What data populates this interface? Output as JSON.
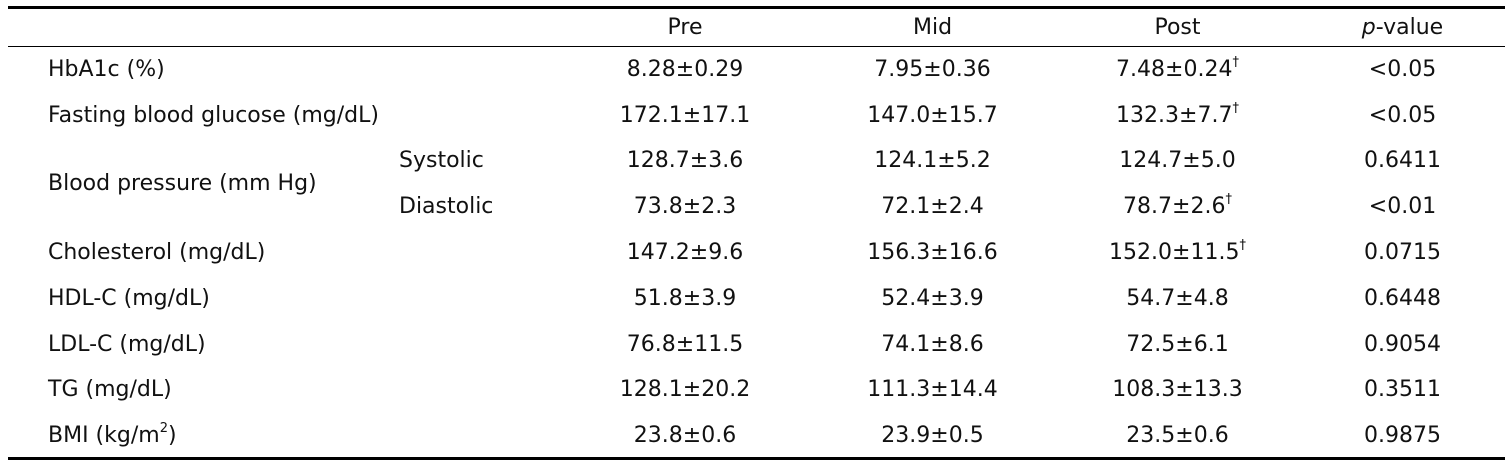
{
  "table": {
    "columns": [
      {
        "text": "Pre"
      },
      {
        "text": "Mid"
      },
      {
        "text": "Post"
      },
      {
        "italic": "p",
        "text": "-value"
      }
    ],
    "rows": [
      {
        "label": "HbA1c (%)",
        "cells": [
          {
            "text": "8.28±0.29"
          },
          {
            "text": "7.95±0.36"
          },
          {
            "text": "7.48±0.24",
            "sup": "†"
          },
          {
            "text": "<0.05"
          }
        ]
      },
      {
        "label": "Fasting blood glucose (mg/dL)",
        "cells": [
          {
            "text": "172.1±17.1"
          },
          {
            "text": "147.0±15.7"
          },
          {
            "text": "132.3±7.7",
            "sup": "†"
          },
          {
            "text": "<0.05"
          }
        ]
      },
      {
        "label": "Blood pressure (mm Hg)",
        "subrows": [
          {
            "sublabel": "Systolic",
            "cells": [
              {
                "text": "128.7±3.6"
              },
              {
                "text": "124.1±5.2"
              },
              {
                "text": "124.7±5.0"
              },
              {
                "text": "0.6411"
              }
            ]
          },
          {
            "sublabel": "Diastolic",
            "cells": [
              {
                "text": "73.8±2.3"
              },
              {
                "text": "72.1±2.4"
              },
              {
                "text": "78.7±2.6",
                "sup": "†"
              },
              {
                "text": "<0.01"
              }
            ]
          }
        ]
      },
      {
        "label": "Cholesterol (mg/dL)",
        "cells": [
          {
            "text": "147.2±9.6"
          },
          {
            "text": "156.3±16.6"
          },
          {
            "text": "152.0±11.5",
            "sup": "†"
          },
          {
            "text": "0.0715"
          }
        ]
      },
      {
        "label": "HDL-C (mg/dL)",
        "cells": [
          {
            "text": "51.8±3.9"
          },
          {
            "text": "52.4±3.9"
          },
          {
            "text": "54.7±4.8"
          },
          {
            "text": "0.6448"
          }
        ]
      },
      {
        "label": "LDL-C (mg/dL)",
        "cells": [
          {
            "text": "76.8±11.5"
          },
          {
            "text": "74.1±8.6"
          },
          {
            "text": "72.5±6.1"
          },
          {
            "text": "0.9054"
          }
        ]
      },
      {
        "label": "TG (mg/dL)",
        "cells": [
          {
            "text": "128.1±20.2"
          },
          {
            "text": "111.3±14.4"
          },
          {
            "text": "108.3±13.3"
          },
          {
            "text": "0.3511"
          }
        ]
      },
      {
        "label": "BMI (kg/m",
        "label_sup": "2",
        "label_end": ")",
        "cells": [
          {
            "text": "23.8±0.6"
          },
          {
            "text": "23.9±0.5"
          },
          {
            "text": "23.5±0.6"
          },
          {
            "text": "0.9875"
          }
        ]
      }
    ]
  }
}
